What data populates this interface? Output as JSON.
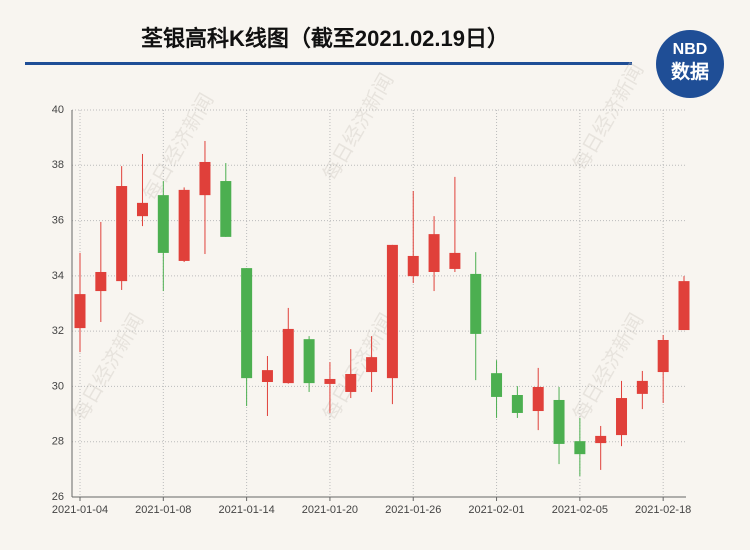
{
  "chart_data": {
    "type": "candlestick",
    "title": "荃银高科K线图（截至2021.02.19日）",
    "logo": {
      "top": "NBD",
      "bottom": "数据"
    },
    "watermark": "每日经济新闻",
    "categories": [
      "2021-01-04",
      null,
      null,
      null,
      "2021-01-08",
      null,
      null,
      null,
      "2021-01-14",
      null,
      null,
      null,
      "2021-01-20",
      null,
      null,
      null,
      "2021-01-26",
      null,
      null,
      null,
      "2021-02-01",
      null,
      null,
      null,
      "2021-02-05",
      null,
      null,
      null,
      "2021-02-18",
      null
    ],
    "open": [
      32.11,
      33.45,
      33.81,
      36.16,
      36.92,
      34.54,
      36.92,
      37.43,
      34.28,
      30.16,
      30.12,
      31.71,
      30.09,
      29.8,
      30.52,
      30.3,
      33.99,
      34.14,
      34.25,
      34.07,
      30.48,
      29.69,
      29.11,
      29.51,
      28.02,
      27.95,
      28.24,
      29.73,
      30.52,
      32.04
    ],
    "high": [
      34.83,
      35.95,
      37.97,
      38.41,
      37.43,
      37.2,
      38.88,
      38.08,
      34.28,
      31.1,
      32.84,
      31.82,
      30.88,
      31.35,
      31.82,
      35.12,
      37.07,
      36.16,
      37.58,
      34.86,
      30.95,
      30.01,
      30.67,
      29.98,
      28.86,
      28.57,
      30.2,
      30.56,
      31.86,
      33.99
    ],
    "low": [
      31.24,
      32.33,
      33.49,
      35.8,
      33.45,
      34.5,
      34.79,
      35.41,
      29.29,
      28.93,
      30.1,
      29.8,
      29.04,
      29.58,
      29.8,
      29.36,
      33.74,
      33.45,
      34.14,
      30.23,
      28.86,
      28.86,
      28.42,
      27.19,
      26.76,
      26.98,
      27.84,
      29.18,
      29.4,
      32.04
    ],
    "close": [
      33.34,
      34.14,
      37.25,
      36.64,
      34.83,
      37.11,
      38.12,
      35.41,
      30.3,
      30.59,
      32.08,
      30.12,
      30.27,
      30.45,
      31.06,
      35.12,
      34.72,
      35.51,
      34.83,
      31.9,
      29.62,
      29.04,
      29.98,
      27.92,
      27.55,
      28.21,
      29.58,
      30.2,
      31.68,
      33.81
    ],
    "up_color": "#e0403a",
    "down_color": "#4caf50",
    "ylim": [
      26,
      40
    ],
    "yticks": [
      26,
      28,
      30,
      32,
      34,
      36,
      38,
      40
    ],
    "grid": true
  }
}
